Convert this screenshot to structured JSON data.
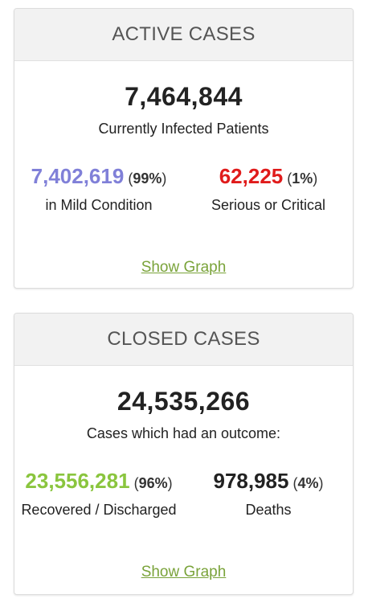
{
  "active": {
    "title": "ACTIVE CASES",
    "total": "7,464,844",
    "total_caption": "Currently Infected Patients",
    "mild": {
      "value": "7,402,619",
      "pct_open": "(",
      "pct": "99%",
      "pct_close": ")",
      "label": "in Mild Condition",
      "color": "#8080d8"
    },
    "serious": {
      "value": "62,225",
      "pct_open": "(",
      "pct": "1%",
      "pct_close": ")",
      "label": "Serious or Critical",
      "color": "#e01b1b"
    },
    "link": "Show Graph"
  },
  "closed": {
    "title": "CLOSED CASES",
    "total": "24,535,266",
    "total_caption": "Cases which had an outcome:",
    "recovered": {
      "value": "23,556,281",
      "pct_open": "(",
      "pct": "96%",
      "pct_close": ")",
      "label": "Recovered / Discharged",
      "color": "#8ac53e"
    },
    "deaths": {
      "value": "978,985",
      "pct_open": "(",
      "pct": "4%",
      "pct_close": ")",
      "label": "Deaths",
      "color": "#222222"
    },
    "link": "Show Graph"
  },
  "colors": {
    "link": "#7aa33a",
    "heading_bg": "#f2f2f2"
  }
}
